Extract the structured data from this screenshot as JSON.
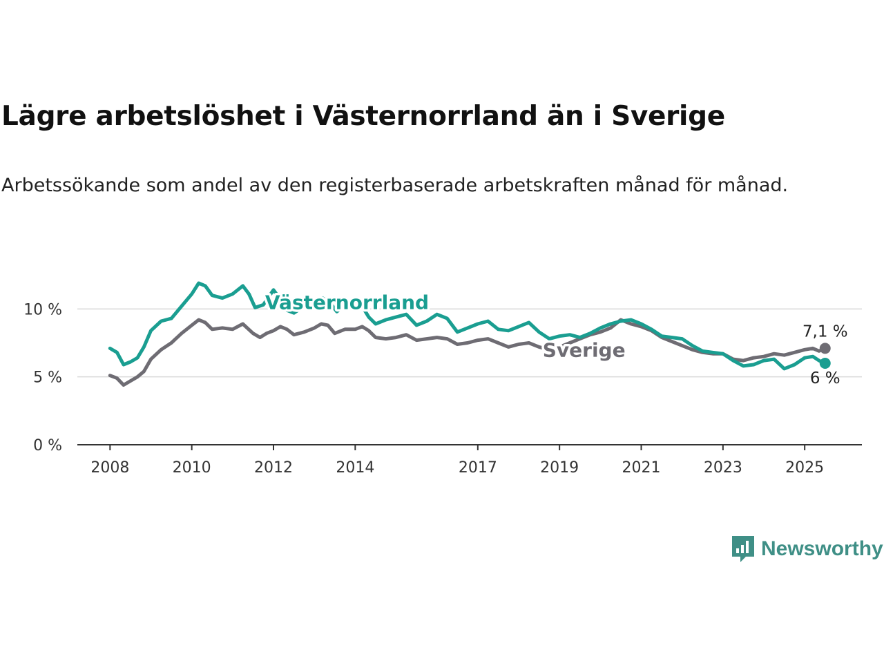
{
  "title": "Lägre arbetslöshet i Västernorrland än i Sverige",
  "subtitle": "Arbetssökande som andel av den registerbaserade arbetskraften månad för månad.",
  "brand": {
    "name": "Newsworthy",
    "icon": "newsworthy-logo-icon",
    "color": "#3f8f86"
  },
  "chart_data": {
    "type": "line",
    "x_range": [
      2007.2,
      2026.4
    ],
    "ylim": [
      0,
      12
    ],
    "y_ticks": [
      {
        "value": 0,
        "label": "0 %"
      },
      {
        "value": 5,
        "label": "5 %"
      },
      {
        "value": 10,
        "label": "10 %"
      }
    ],
    "x_ticks": [
      {
        "value": 2008,
        "label": "2008"
      },
      {
        "value": 2010,
        "label": "2010"
      },
      {
        "value": 2012,
        "label": "2012"
      },
      {
        "value": 2014,
        "label": "2014"
      },
      {
        "value": 2017,
        "label": "2017"
      },
      {
        "value": 2019,
        "label": "2019"
      },
      {
        "value": 2021,
        "label": "2021"
      },
      {
        "value": 2023,
        "label": "2023"
      },
      {
        "value": 2025,
        "label": "2025"
      }
    ],
    "grid": "horizontal",
    "series": [
      {
        "name": "Sverige",
        "color": "#6e6c73",
        "end_label": "7,1 %",
        "points": [
          [
            2008.0,
            5.1
          ],
          [
            2008.17,
            4.9
          ],
          [
            2008.33,
            4.4
          ],
          [
            2008.5,
            4.7
          ],
          [
            2008.67,
            5.0
          ],
          [
            2008.83,
            5.4
          ],
          [
            2009.0,
            6.3
          ],
          [
            2009.25,
            7.0
          ],
          [
            2009.5,
            7.5
          ],
          [
            2009.75,
            8.2
          ],
          [
            2010.0,
            8.8
          ],
          [
            2010.17,
            9.2
          ],
          [
            2010.33,
            9.0
          ],
          [
            2010.5,
            8.5
          ],
          [
            2010.75,
            8.6
          ],
          [
            2011.0,
            8.5
          ],
          [
            2011.25,
            8.9
          ],
          [
            2011.5,
            8.2
          ],
          [
            2011.67,
            7.9
          ],
          [
            2011.83,
            8.2
          ],
          [
            2012.0,
            8.4
          ],
          [
            2012.17,
            8.7
          ],
          [
            2012.33,
            8.5
          ],
          [
            2012.5,
            8.1
          ],
          [
            2012.75,
            8.3
          ],
          [
            2013.0,
            8.6
          ],
          [
            2013.17,
            8.9
          ],
          [
            2013.33,
            8.8
          ],
          [
            2013.5,
            8.2
          ],
          [
            2013.75,
            8.5
          ],
          [
            2014.0,
            8.5
          ],
          [
            2014.17,
            8.7
          ],
          [
            2014.33,
            8.4
          ],
          [
            2014.5,
            7.9
          ],
          [
            2014.75,
            7.8
          ],
          [
            2015.0,
            7.9
          ],
          [
            2015.25,
            8.1
          ],
          [
            2015.5,
            7.7
          ],
          [
            2015.75,
            7.8
          ],
          [
            2016.0,
            7.9
          ],
          [
            2016.25,
            7.8
          ],
          [
            2016.5,
            7.4
          ],
          [
            2016.75,
            7.5
          ],
          [
            2017.0,
            7.7
          ],
          [
            2017.25,
            7.8
          ],
          [
            2017.5,
            7.5
          ],
          [
            2017.75,
            7.2
          ],
          [
            2018.0,
            7.4
          ],
          [
            2018.25,
            7.5
          ],
          [
            2018.5,
            7.2
          ],
          [
            2018.75,
            7.0
          ],
          [
            2019.0,
            7.2
          ],
          [
            2019.25,
            7.5
          ],
          [
            2019.5,
            7.8
          ],
          [
            2019.75,
            8.1
          ],
          [
            2020.0,
            8.3
          ],
          [
            2020.25,
            8.6
          ],
          [
            2020.5,
            9.2
          ],
          [
            2020.75,
            8.9
          ],
          [
            2021.0,
            8.7
          ],
          [
            2021.25,
            8.4
          ],
          [
            2021.5,
            7.9
          ],
          [
            2021.75,
            7.6
          ],
          [
            2022.0,
            7.3
          ],
          [
            2022.25,
            7.0
          ],
          [
            2022.5,
            6.8
          ],
          [
            2022.75,
            6.7
          ],
          [
            2023.0,
            6.7
          ],
          [
            2023.25,
            6.3
          ],
          [
            2023.5,
            6.2
          ],
          [
            2023.75,
            6.4
          ],
          [
            2024.0,
            6.5
          ],
          [
            2024.25,
            6.7
          ],
          [
            2024.5,
            6.6
          ],
          [
            2024.75,
            6.8
          ],
          [
            2025.0,
            7.0
          ],
          [
            2025.2,
            7.1
          ],
          [
            2025.35,
            6.9
          ],
          [
            2025.5,
            7.1
          ]
        ]
      },
      {
        "name": "Västernorrland",
        "color": "#1a9e91",
        "end_label": "6 %",
        "points": [
          [
            2008.0,
            7.1
          ],
          [
            2008.17,
            6.8
          ],
          [
            2008.33,
            5.9
          ],
          [
            2008.5,
            6.1
          ],
          [
            2008.67,
            6.4
          ],
          [
            2008.83,
            7.2
          ],
          [
            2009.0,
            8.4
          ],
          [
            2009.25,
            9.1
          ],
          [
            2009.5,
            9.3
          ],
          [
            2009.75,
            10.2
          ],
          [
            2010.0,
            11.1
          ],
          [
            2010.17,
            11.9
          ],
          [
            2010.33,
            11.7
          ],
          [
            2010.5,
            11.0
          ],
          [
            2010.75,
            10.8
          ],
          [
            2011.0,
            11.1
          ],
          [
            2011.25,
            11.7
          ],
          [
            2011.4,
            11.1
          ],
          [
            2011.55,
            10.1
          ],
          [
            2011.75,
            10.3
          ],
          [
            2012.0,
            11.4
          ],
          [
            2012.17,
            10.7
          ],
          [
            2012.33,
            9.9
          ],
          [
            2012.5,
            9.7
          ],
          [
            2012.75,
            10.2
          ],
          [
            2013.0,
            10.6
          ],
          [
            2013.2,
            10.8
          ],
          [
            2013.4,
            10.4
          ],
          [
            2013.55,
            9.8
          ],
          [
            2013.75,
            10.3
          ],
          [
            2014.0,
            10.7
          ],
          [
            2014.17,
            10.2
          ],
          [
            2014.33,
            9.4
          ],
          [
            2014.5,
            8.9
          ],
          [
            2014.75,
            9.2
          ],
          [
            2015.0,
            9.4
          ],
          [
            2015.25,
            9.6
          ],
          [
            2015.5,
            8.8
          ],
          [
            2015.75,
            9.1
          ],
          [
            2016.0,
            9.6
          ],
          [
            2016.25,
            9.3
          ],
          [
            2016.5,
            8.3
          ],
          [
            2016.75,
            8.6
          ],
          [
            2017.0,
            8.9
          ],
          [
            2017.25,
            9.1
          ],
          [
            2017.5,
            8.5
          ],
          [
            2017.75,
            8.4
          ],
          [
            2018.0,
            8.7
          ],
          [
            2018.25,
            9.0
          ],
          [
            2018.5,
            8.3
          ],
          [
            2018.75,
            7.8
          ],
          [
            2019.0,
            8.0
          ],
          [
            2019.25,
            8.1
          ],
          [
            2019.5,
            7.9
          ],
          [
            2019.75,
            8.2
          ],
          [
            2020.0,
            8.6
          ],
          [
            2020.25,
            8.9
          ],
          [
            2020.5,
            9.1
          ],
          [
            2020.75,
            9.2
          ],
          [
            2021.0,
            8.9
          ],
          [
            2021.25,
            8.5
          ],
          [
            2021.5,
            8.0
          ],
          [
            2021.75,
            7.9
          ],
          [
            2022.0,
            7.8
          ],
          [
            2022.25,
            7.3
          ],
          [
            2022.5,
            6.9
          ],
          [
            2022.75,
            6.8
          ],
          [
            2023.0,
            6.7
          ],
          [
            2023.25,
            6.2
          ],
          [
            2023.5,
            5.8
          ],
          [
            2023.75,
            5.9
          ],
          [
            2024.0,
            6.2
          ],
          [
            2024.25,
            6.3
          ],
          [
            2024.5,
            5.6
          ],
          [
            2024.75,
            5.9
          ],
          [
            2025.0,
            6.4
          ],
          [
            2025.2,
            6.5
          ],
          [
            2025.35,
            6.2
          ],
          [
            2025.5,
            6.0
          ]
        ]
      }
    ],
    "series_labels": [
      {
        "text": "Västernorrland",
        "series": 1,
        "at": [
          2013.8,
          10.5
        ]
      },
      {
        "text": "Sverige",
        "series": 0,
        "at": [
          2019.6,
          7.0
        ]
      }
    ]
  }
}
